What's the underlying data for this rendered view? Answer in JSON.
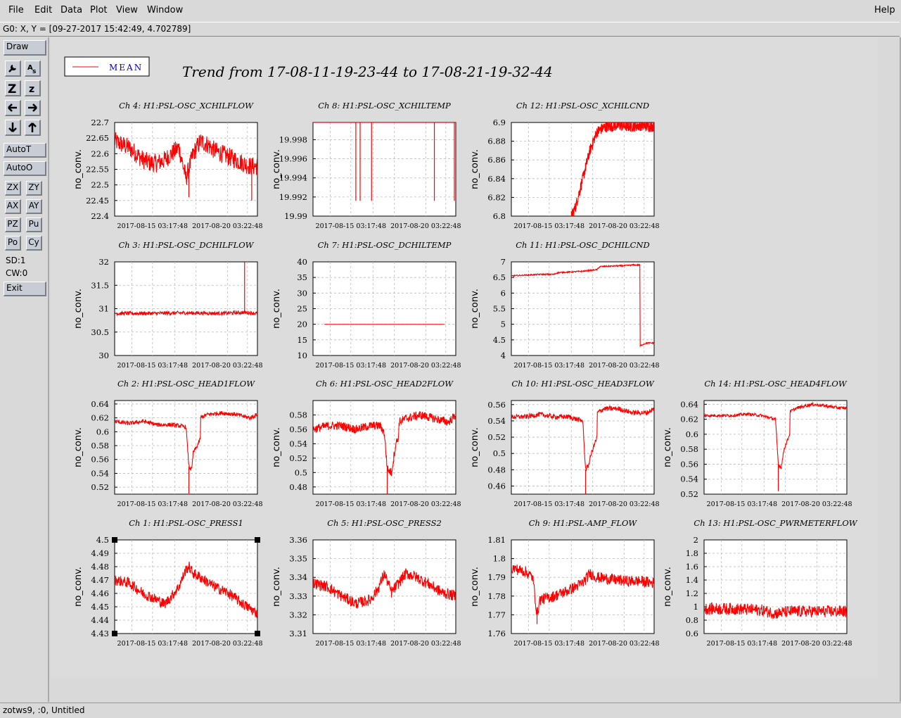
{
  "menu": {
    "file": "File",
    "edit": "Edit",
    "data": "Data",
    "plot": "Plot",
    "view": "View",
    "window": "Window",
    "help": "Help"
  },
  "coord_readout": "G0: X, Y = [09-27-2017 15:42:49, 4.702789]",
  "toolbar": {
    "draw": "Draw",
    "autot": "AutoT",
    "autoo": "AutoO",
    "zx": "ZX",
    "zy": "ZY",
    "ax": "AX",
    "ay": "AY",
    "pz": "PZ",
    "pu": "Pu",
    "po": "Po",
    "cy": "Cy",
    "sd": "SD:1",
    "cw": "CW:0",
    "exit": "Exit",
    "z_big": "Z",
    "z_small": "z",
    "icons": [
      "wrench-icon",
      "text-scale-icon",
      "zoom-z-icon",
      "zoom-z-small-icon",
      "arrow-left-icon",
      "arrow-right-icon",
      "arrow-down-icon",
      "arrow-up-icon"
    ]
  },
  "status_text": "zotws9, :0, Untitled",
  "colors": {
    "trace": "#ff0000",
    "legend_text": "#0000cc",
    "background": "#dcdcdc",
    "plot_bg": "#ffffff"
  },
  "legend_label": "MEAN",
  "main_title": "Trend from 17-08-11-19-23-44 to 17-08-21-19-32-44",
  "chart_data": [
    {
      "type": "line",
      "title": "Ch 4: H1:PSL-OSC_XCHILFLOW",
      "ylabel": "no_conv.",
      "xticks": [
        "2017-08-15 03:17:48",
        "2017-08-20 03:22:48"
      ],
      "yticks": [
        "22.7",
        "22.65",
        "22.6",
        "22.55",
        "22.5",
        "22.45",
        "22.4"
      ],
      "ylim": [
        22.4,
        22.7
      ],
      "series": [
        {
          "name": "MEAN",
          "x": [
            0,
            0.05,
            0.1,
            0.15,
            0.2,
            0.25,
            0.3,
            0.35,
            0.4,
            0.45,
            0.5,
            0.55,
            0.6,
            0.65,
            0.7,
            0.75,
            0.8,
            0.85,
            0.9,
            0.95,
            1
          ],
          "y": [
            22.64,
            22.63,
            22.62,
            22.6,
            22.58,
            22.57,
            22.57,
            22.58,
            22.6,
            22.62,
            22.52,
            22.6,
            22.64,
            22.63,
            22.61,
            22.6,
            22.59,
            22.58,
            22.57,
            22.56,
            22.56
          ],
          "noise": 0.03,
          "spikes": [
            [
              0.52,
              22.46
            ],
            [
              0.96,
              22.45
            ]
          ]
        }
      ]
    },
    {
      "type": "line",
      "title": "Ch 8: H1:PSL-OSC_XCHILTEMP",
      "ylabel": "no_conv.",
      "xticks": [
        "2017-08-15 03:17:48",
        "2017-08-20 03:22:48"
      ],
      "yticks": [
        "19.998",
        "19.996",
        "19.994",
        "19.992",
        "19.99"
      ],
      "ylim": [
        19.99,
        19.9998
      ],
      "series": [
        {
          "name": "MEAN",
          "x": [
            0,
            1
          ],
          "y": [
            19.9998,
            19.9998
          ],
          "noise": 0,
          "spikes": [
            [
              0.3,
              19.9916
            ],
            [
              0.33,
              19.9916
            ],
            [
              0.41,
              19.9916
            ],
            [
              0.85,
              19.9916
            ],
            [
              0.99,
              19.9916
            ]
          ]
        }
      ]
    },
    {
      "type": "line",
      "title": "Ch 12: H1:PSL-OSC_XCHILCND",
      "ylabel": "no_conv.",
      "xticks": [
        "2017-08-15 03:17:48",
        "2017-08-20 03:22:48"
      ],
      "yticks": [
        "6.9",
        "6.88",
        "6.86",
        "6.84",
        "6.82",
        "6.8"
      ],
      "ylim": [
        6.8,
        6.9
      ],
      "series": [
        {
          "name": "MEAN",
          "x": [
            0.42,
            0.45,
            0.5,
            0.55,
            0.6,
            0.65,
            0.7,
            0.75,
            0.8,
            0.85,
            0.9,
            0.95,
            1
          ],
          "y": [
            6.8,
            6.81,
            6.84,
            6.87,
            6.89,
            6.895,
            6.896,
            6.897,
            6.896,
            6.896,
            6.897,
            6.896,
            6.896
          ],
          "noise": 0.006,
          "spikes": []
        }
      ]
    },
    {
      "type": "line",
      "title": "Ch 3: H1:PSL-OSC_DCHILFLOW",
      "ylabel": "no_conv.",
      "xticks": [
        "2017-08-15 03:17:48",
        "2017-08-20 03:22:48"
      ],
      "yticks": [
        "32",
        "31.5",
        "31",
        "30.5",
        "30"
      ],
      "ylim": [
        30,
        32
      ],
      "series": [
        {
          "name": "MEAN",
          "x": [
            0,
            0.25,
            0.5,
            0.75,
            0.9,
            1
          ],
          "y": [
            30.9,
            30.9,
            30.91,
            30.9,
            30.92,
            30.9
          ],
          "noise": 0.04,
          "spikes": [
            [
              0.91,
              32
            ]
          ]
        }
      ]
    },
    {
      "type": "line",
      "title": "Ch 7: H1:PSL-OSC_DCHILTEMP",
      "ylabel": "no_conv.",
      "xticks": [
        "2017-08-15 03:17:48",
        "2017-08-20 03:22:48"
      ],
      "yticks": [
        "40",
        "35",
        "30",
        "25",
        "20",
        "15",
        "10"
      ],
      "ylim": [
        10,
        40
      ],
      "series": [
        {
          "name": "MEAN",
          "x": [
            0.08,
            0.5,
            0.92
          ],
          "y": [
            20,
            20,
            20
          ],
          "noise": 0,
          "spikes": []
        }
      ]
    },
    {
      "type": "line",
      "title": "Ch 11: H1:PSL-OSC_DCHILCND",
      "ylabel": "no_conv.",
      "xticks": [
        "2017-08-15 03:17:48",
        "2017-08-20 03:22:48"
      ],
      "yticks": [
        "7",
        "6.5",
        "6",
        "5.5",
        "5",
        "4.5",
        "4"
      ],
      "ylim": [
        4,
        7
      ],
      "series": [
        {
          "name": "MEAN",
          "x": [
            0,
            0.2,
            0.3,
            0.32,
            0.5,
            0.6,
            0.62,
            0.8,
            0.85,
            0.9,
            0.9,
            0.92,
            0.95,
            1
          ],
          "y": [
            6.55,
            6.6,
            6.6,
            6.65,
            6.7,
            6.75,
            6.85,
            6.88,
            6.9,
            6.9,
            4.3,
            4.35,
            4.4,
            4.4
          ],
          "noise": 0.02,
          "spikes": []
        }
      ]
    },
    {
      "type": "line",
      "title": "Ch 2: H1:PSL-OSC_HEAD1FLOW",
      "ylabel": "no_conv.",
      "xticks": [
        "2017-08-15 03:17:48",
        "2017-08-20 03:22:48"
      ],
      "yticks": [
        "0.64",
        "0.62",
        "0.6",
        "0.58",
        "0.56",
        "0.54",
        "0.52"
      ],
      "ylim": [
        0.51,
        0.645
      ],
      "series": [
        {
          "name": "MEAN",
          "x": [
            0,
            0.1,
            0.2,
            0.3,
            0.4,
            0.5,
            0.52,
            0.54,
            0.55,
            0.58,
            0.6,
            0.6,
            0.65,
            0.75,
            0.85,
            0.95,
            1
          ],
          "y": [
            0.615,
            0.612,
            0.615,
            0.61,
            0.61,
            0.607,
            0.55,
            0.545,
            0.57,
            0.58,
            0.59,
            0.62,
            0.625,
            0.627,
            0.625,
            0.62,
            0.625
          ],
          "noise": 0.003,
          "spikes": [
            [
              0.52,
              0.511
            ]
          ]
        }
      ]
    },
    {
      "type": "line",
      "title": "Ch 6: H1:PSL-OSC_HEAD2FLOW",
      "ylabel": "no_conv.",
      "xticks": [
        "2017-08-15 03:17:48",
        "2017-08-20 03:22:48"
      ],
      "yticks": [
        "0.58",
        "0.56",
        "0.54",
        "0.52",
        "0.5",
        "0.48"
      ],
      "ylim": [
        0.47,
        0.6
      ],
      "series": [
        {
          "name": "MEAN",
          "x": [
            0,
            0.1,
            0.2,
            0.3,
            0.4,
            0.47,
            0.5,
            0.52,
            0.55,
            0.58,
            0.6,
            0.6,
            0.65,
            0.75,
            0.85,
            0.95,
            1
          ],
          "y": [
            0.56,
            0.565,
            0.565,
            0.56,
            0.565,
            0.565,
            0.555,
            0.505,
            0.5,
            0.54,
            0.55,
            0.57,
            0.575,
            0.58,
            0.575,
            0.57,
            0.58
          ],
          "noise": 0.006,
          "spikes": [
            [
              0.52,
              0.47
            ]
          ]
        }
      ]
    },
    {
      "type": "line",
      "title": "Ch 10: H1:PSL-OSC_HEAD3FLOW",
      "ylabel": "no_conv.",
      "xticks": [
        "2017-08-15 03:17:48",
        "2017-08-20 03:22:48"
      ],
      "yticks": [
        "0.56",
        "0.54",
        "0.52",
        "0.5",
        "0.48",
        "0.46"
      ],
      "ylim": [
        0.45,
        0.565
      ],
      "series": [
        {
          "name": "MEAN",
          "x": [
            0,
            0.1,
            0.2,
            0.3,
            0.4,
            0.5,
            0.52,
            0.54,
            0.56,
            0.58,
            0.6,
            0.6,
            0.65,
            0.75,
            0.85,
            0.95,
            1
          ],
          "y": [
            0.545,
            0.545,
            0.548,
            0.545,
            0.545,
            0.54,
            0.48,
            0.485,
            0.5,
            0.51,
            0.52,
            0.55,
            0.555,
            0.555,
            0.55,
            0.55,
            0.555
          ],
          "noise": 0.003,
          "spikes": [
            [
              0.52,
              0.45
            ]
          ]
        }
      ]
    },
    {
      "type": "line",
      "title": "Ch 14: H1:PSL-OSC_HEAD4FLOW",
      "ylabel": "no_conv.",
      "xticks": [
        "2017-08-15 03:17:48",
        "2017-08-20 03:22:48"
      ],
      "yticks": [
        "0.64",
        "0.62",
        "0.6",
        "0.58",
        "0.56",
        "0.54",
        "0.52"
      ],
      "ylim": [
        0.52,
        0.645
      ],
      "series": [
        {
          "name": "MEAN",
          "x": [
            0,
            0.1,
            0.2,
            0.3,
            0.4,
            0.5,
            0.52,
            0.54,
            0.56,
            0.58,
            0.6,
            0.6,
            0.65,
            0.75,
            0.85,
            0.95,
            1
          ],
          "y": [
            0.625,
            0.625,
            0.625,
            0.627,
            0.625,
            0.62,
            0.56,
            0.555,
            0.58,
            0.59,
            0.6,
            0.63,
            0.635,
            0.64,
            0.638,
            0.635,
            0.635
          ],
          "noise": 0.002,
          "spikes": [
            [
              0.52,
              0.524
            ]
          ]
        }
      ]
    },
    {
      "type": "line",
      "title": "Ch 1: H1:PSL-OSC_PRESS1",
      "ylabel": "no_conv.",
      "xticks": [
        "2017-08-15 03:17:48",
        "2017-08-20 03:22:48"
      ],
      "yticks": [
        "4.5",
        "4.49",
        "4.48",
        "4.47",
        "4.46",
        "4.45",
        "4.44",
        "4.43"
      ],
      "ylim": [
        4.43,
        4.5
      ],
      "series": [
        {
          "name": "MEAN",
          "x": [
            0,
            0.1,
            0.2,
            0.3,
            0.35,
            0.4,
            0.45,
            0.5,
            0.52,
            0.55,
            0.6,
            0.7,
            0.8,
            0.9,
            1
          ],
          "y": [
            4.47,
            4.468,
            4.46,
            4.455,
            4.452,
            4.458,
            4.465,
            4.478,
            4.48,
            4.475,
            4.472,
            4.465,
            4.46,
            4.452,
            4.445
          ],
          "noise": 0.004,
          "spikes": []
        }
      ]
    },
    {
      "type": "line",
      "title": "Ch 5: H1:PSL-OSC_PRESS2",
      "ylabel": "no_conv.",
      "xticks": [
        "2017-08-15 03:17:48",
        "2017-08-20 03:22:48"
      ],
      "yticks": [
        "3.36",
        "3.35",
        "3.34",
        "3.33",
        "3.32",
        "3.31"
      ],
      "ylim": [
        3.31,
        3.36
      ],
      "series": [
        {
          "name": "MEAN",
          "x": [
            0,
            0.1,
            0.2,
            0.3,
            0.4,
            0.45,
            0.5,
            0.55,
            0.6,
            0.65,
            0.7,
            0.8,
            0.9,
            1
          ],
          "y": [
            3.337,
            3.335,
            3.33,
            3.326,
            3.328,
            3.333,
            3.342,
            3.332,
            3.337,
            3.342,
            3.341,
            3.337,
            3.332,
            3.33
          ],
          "noise": 0.003,
          "spikes": []
        }
      ]
    },
    {
      "type": "line",
      "title": "Ch 9: H1:PSL-AMP_FLOW",
      "ylabel": "no_conv.",
      "xticks": [
        "2017-08-15 03:17:48",
        "2017-08-20 03:22:48"
      ],
      "yticks": [
        "1.81",
        "1.8",
        "1.79",
        "1.78",
        "1.77",
        "1.76"
      ],
      "ylim": [
        1.76,
        1.81
      ],
      "series": [
        {
          "name": "MEAN",
          "x": [
            0,
            0.1,
            0.15,
            0.18,
            0.2,
            0.3,
            0.4,
            0.5,
            0.55,
            0.6,
            0.7,
            0.8,
            0.9,
            1
          ],
          "y": [
            1.795,
            1.793,
            1.79,
            1.77,
            1.778,
            1.78,
            1.783,
            1.787,
            1.792,
            1.79,
            1.789,
            1.788,
            1.788,
            1.787
          ],
          "noise": 0.003,
          "spikes": [
            [
              0.18,
              1.765
            ]
          ]
        }
      ]
    },
    {
      "type": "line",
      "title": "Ch 13: H1:PSL-OSC_PWRMETERFLOW",
      "ylabel": "no_conv.",
      "xticks": [
        "2017-08-15 03:17:48",
        "2017-08-20 03:22:48"
      ],
      "yticks": [
        "2",
        "1.8",
        "1.6",
        "1.4",
        "1.2",
        "1",
        "0.8",
        "0.6"
      ],
      "ylim": [
        0.6,
        2
      ],
      "series": [
        {
          "name": "MEAN",
          "x": [
            0,
            0.2,
            0.4,
            0.5,
            0.6,
            0.8,
            1
          ],
          "y": [
            0.97,
            0.97,
            0.95,
            0.9,
            0.93,
            0.93,
            0.93
          ],
          "noise": 0.09,
          "spikes": []
        }
      ]
    }
  ]
}
